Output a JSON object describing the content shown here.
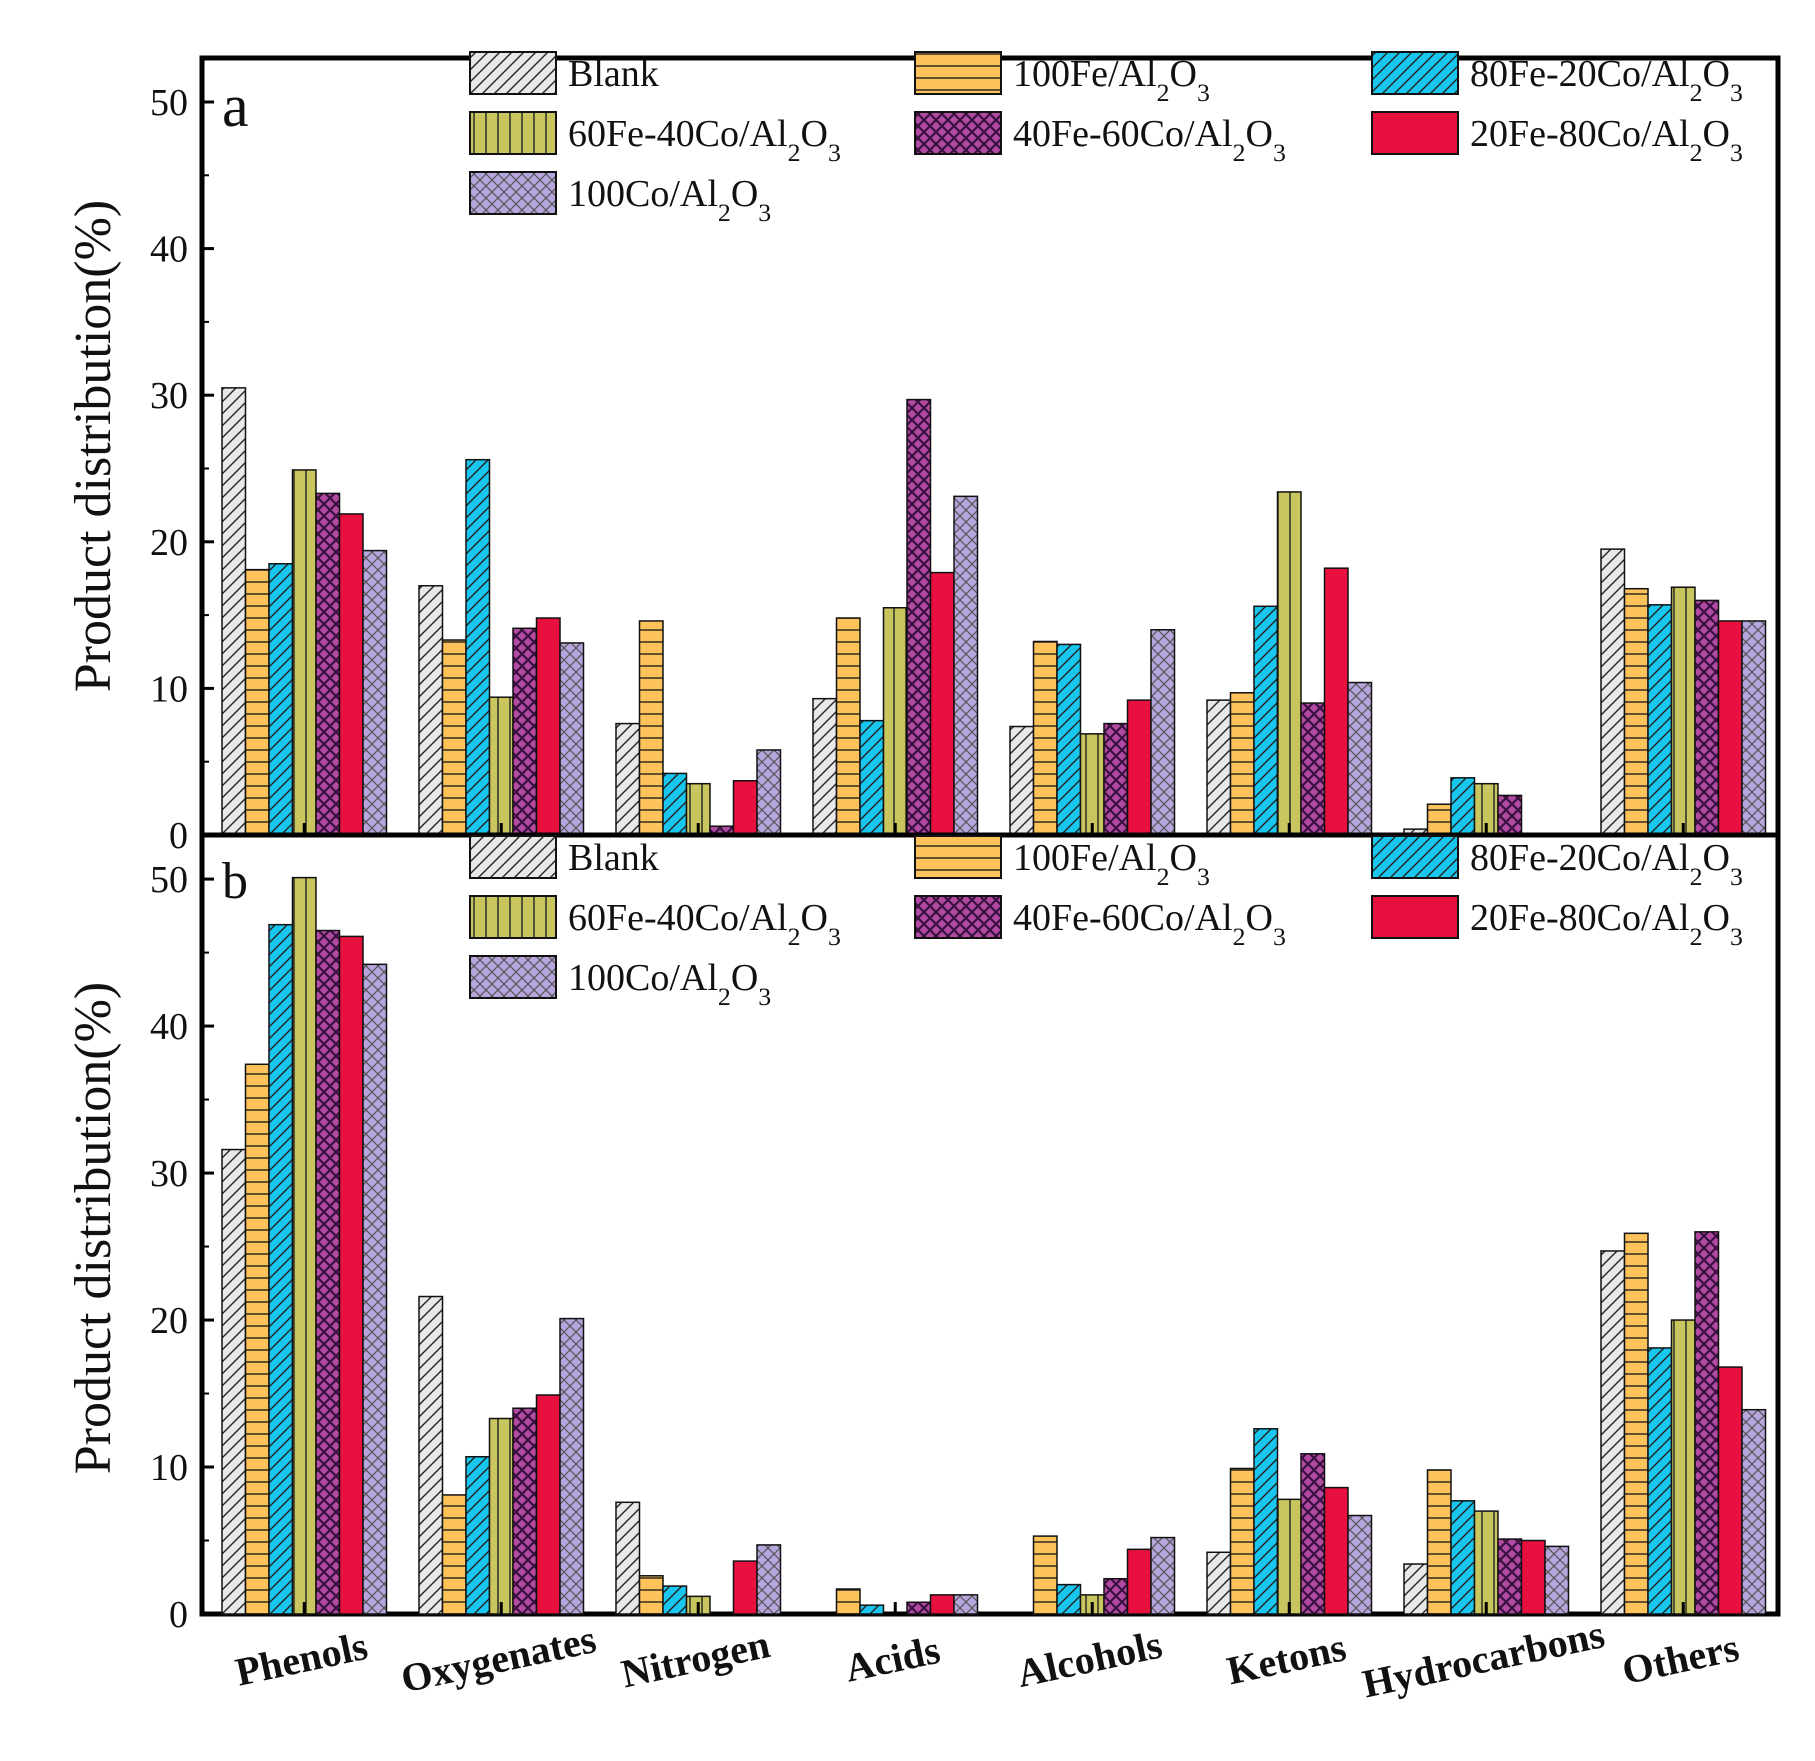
{
  "series": [
    {
      "name": "Blank",
      "color": "#e8e8e8",
      "pattern": "hatch"
    },
    {
      "name": "100Fe/Al2O3",
      "color": "#fdc35a",
      "pattern": "hlines"
    },
    {
      "name": "80Fe-20Co/Al2O3",
      "color": "#19c6ee",
      "pattern": "hatch"
    },
    {
      "name": "60Fe-40Co/Al2O3",
      "color": "#c9c55f",
      "pattern": "vlines"
    },
    {
      "name": "40Fe-60Co/Al2O3",
      "color": "#b24aa2",
      "pattern": "dots"
    },
    {
      "name": "20Fe-80Co/Al2O3",
      "color": "#e8103e",
      "pattern": "none"
    },
    {
      "name": "100Co/Al2O3",
      "color": "#b7a6de",
      "pattern": "cross"
    }
  ],
  "chart_data": [
    {
      "type": "bar",
      "panel_label": "a",
      "ylabel": "Product distribution(%)",
      "ylim": [
        0,
        53
      ],
      "yticks": [
        0,
        10,
        20,
        30,
        40,
        50
      ],
      "categories": [
        "Phenols",
        "Oxygenates",
        "Nitrogen",
        "Acids",
        "Alcohols",
        "Ketons",
        "Hydrocarbons",
        "Others"
      ],
      "series": [
        {
          "name": "Blank",
          "values": [
            30.5,
            17.0,
            7.6,
            9.3,
            7.4,
            9.2,
            0.4,
            19.5
          ]
        },
        {
          "name": "100Fe/Al2O3",
          "values": [
            18.1,
            13.3,
            14.6,
            14.8,
            13.2,
            9.7,
            2.1,
            16.8
          ]
        },
        {
          "name": "80Fe-20Co/Al2O3",
          "values": [
            18.5,
            25.6,
            4.2,
            7.8,
            13.0,
            15.6,
            3.9,
            15.7
          ]
        },
        {
          "name": "60Fe-40Co/Al2O3",
          "values": [
            24.9,
            9.4,
            3.5,
            15.5,
            6.9,
            23.4,
            3.5,
            16.9
          ]
        },
        {
          "name": "40Fe-60Co/Al2O3",
          "values": [
            23.3,
            14.1,
            0.6,
            29.7,
            7.6,
            9.0,
            2.7,
            16.0
          ]
        },
        {
          "name": "20Fe-80Co/Al2O3",
          "values": [
            21.9,
            14.8,
            3.7,
            17.9,
            9.2,
            18.2,
            0,
            14.6
          ]
        },
        {
          "name": "100Co/Al2O3",
          "values": [
            19.4,
            13.1,
            5.8,
            23.1,
            14.0,
            10.4,
            0,
            14.6
          ]
        }
      ]
    },
    {
      "type": "bar",
      "panel_label": "b",
      "ylabel": "Product distribution(%)",
      "ylim": [
        0,
        53
      ],
      "yticks": [
        0,
        10,
        20,
        30,
        40,
        50
      ],
      "categories": [
        "Phenols",
        "Oxygenates",
        "Nitrogen",
        "Acids",
        "Alcohols",
        "Ketons",
        "Hydrocarbons",
        "Others"
      ],
      "series": [
        {
          "name": "Blank",
          "values": [
            31.6,
            21.6,
            7.6,
            0,
            0,
            4.2,
            3.4,
            24.7
          ]
        },
        {
          "name": "100Fe/Al2O3",
          "values": [
            37.4,
            8.1,
            2.6,
            1.7,
            5.3,
            9.9,
            9.8,
            25.9
          ]
        },
        {
          "name": "80Fe-20Co/Al2O3",
          "values": [
            46.9,
            10.7,
            1.9,
            0.6,
            2.0,
            12.6,
            7.7,
            18.1
          ]
        },
        {
          "name": "60Fe-40Co/Al2O3",
          "values": [
            50.1,
            13.3,
            1.2,
            0,
            1.3,
            7.8,
            7.0,
            20.0
          ]
        },
        {
          "name": "40Fe-60Co/Al2O3",
          "values": [
            46.5,
            14.0,
            0,
            0.8,
            2.4,
            10.9,
            5.1,
            26.0
          ]
        },
        {
          "name": "20Fe-80Co/Al2O3",
          "values": [
            46.1,
            14.9,
            3.6,
            1.3,
            4.4,
            8.6,
            5.0,
            16.8
          ]
        },
        {
          "name": "100Co/Al2O3",
          "values": [
            44.2,
            20.1,
            4.7,
            1.3,
            5.2,
            6.7,
            4.6,
            13.9
          ]
        }
      ]
    }
  ]
}
